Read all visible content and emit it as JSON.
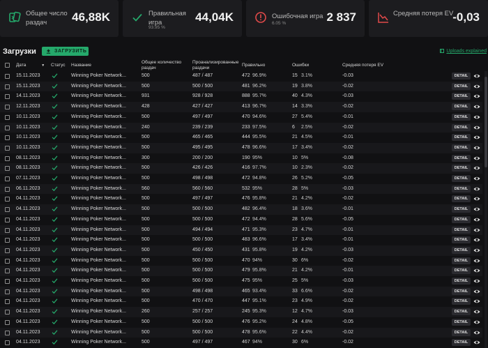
{
  "stats": {
    "hands": {
      "label": "Общее число раздач",
      "value": "46,88K",
      "icon": "cards-icon"
    },
    "correct": {
      "label": "Правильная игра",
      "sub": "93.95 %",
      "value": "44,04K",
      "icon": "check-icon"
    },
    "errors": {
      "label": "Ошибочная игра",
      "sub": "6.05 %",
      "value": "2 837",
      "icon": "alert-icon"
    },
    "ev": {
      "label": "Средняя потеря EV",
      "value": "-0,03",
      "icon": "chart-down-icon"
    }
  },
  "toolbar": {
    "title": "Загрузки",
    "upload_label": "ЗАГРУЗИТЬ",
    "help_link": "Uploads explained"
  },
  "table": {
    "headers": {
      "date": "Дата",
      "status": "Статус",
      "name": "Название",
      "total": "Общее количество раздач",
      "analyzed": "Проанализированные раздачи",
      "correct": "Правильно",
      "errors": "Ошибки",
      "ev": "Средняя потеря EV"
    },
    "detail_label": "DETAIL",
    "rows": [
      {
        "date": "15.11.2023",
        "name": "Winning Poker Network...",
        "total": "500",
        "analyzed": "487 / 487",
        "correct": "472",
        "correct_pct": "96.9%",
        "errors": "15",
        "errors_pct": "3.1%",
        "ev": "-0.03"
      },
      {
        "date": "15.11.2023",
        "name": "Winning Poker Network...",
        "total": "500",
        "analyzed": "500 / 500",
        "correct": "481",
        "correct_pct": "96.2%",
        "errors": "19",
        "errors_pct": "3.8%",
        "ev": "-0.02"
      },
      {
        "date": "14.11.2023",
        "name": "Winning Poker Network...",
        "total": "931",
        "analyzed": "928 / 928",
        "correct": "888",
        "correct_pct": "95.7%",
        "errors": "40",
        "errors_pct": "4.3%",
        "ev": "-0.03"
      },
      {
        "date": "12.11.2023",
        "name": "Winning Poker Network...",
        "total": "428",
        "analyzed": "427 / 427",
        "correct": "413",
        "correct_pct": "96.7%",
        "errors": "14",
        "errors_pct": "3.3%",
        "ev": "-0.02"
      },
      {
        "date": "10.11.2023",
        "name": "Winning Poker Network...",
        "total": "500",
        "analyzed": "497 / 497",
        "correct": "470",
        "correct_pct": "94.6%",
        "errors": "27",
        "errors_pct": "5.4%",
        "ev": "-0.01"
      },
      {
        "date": "10.11.2023",
        "name": "Winning Poker Network...",
        "total": "240",
        "analyzed": "239 / 239",
        "correct": "233",
        "correct_pct": "97.5%",
        "errors": "6",
        "errors_pct": "2.5%",
        "ev": "-0.02"
      },
      {
        "date": "10.11.2023",
        "name": "Winning Poker Network...",
        "total": "500",
        "analyzed": "465 / 465",
        "correct": "444",
        "correct_pct": "95.5%",
        "errors": "21",
        "errors_pct": "4.5%",
        "ev": "-0.01"
      },
      {
        "date": "10.11.2023",
        "name": "Winning Poker Network...",
        "total": "500",
        "analyzed": "495 / 495",
        "correct": "478",
        "correct_pct": "96.6%",
        "errors": "17",
        "errors_pct": "3.4%",
        "ev": "-0.02"
      },
      {
        "date": "08.11.2023",
        "name": "Winning Poker Network...",
        "total": "300",
        "analyzed": "200 / 200",
        "correct": "190",
        "correct_pct": "95%",
        "errors": "10",
        "errors_pct": "5%",
        "ev": "-0.08"
      },
      {
        "date": "08.11.2023",
        "name": "Winning Poker Network...",
        "total": "500",
        "analyzed": "426 / 426",
        "correct": "416",
        "correct_pct": "97.7%",
        "errors": "10",
        "errors_pct": "2.3%",
        "ev": "-0.02"
      },
      {
        "date": "07.11.2023",
        "name": "Winning Poker Network...",
        "total": "500",
        "analyzed": "498 / 498",
        "correct": "472",
        "correct_pct": "94.8%",
        "errors": "26",
        "errors_pct": "5.2%",
        "ev": "-0.05"
      },
      {
        "date": "06.11.2023",
        "name": "Winning Poker Network...",
        "total": "560",
        "analyzed": "560 / 560",
        "correct": "532",
        "correct_pct": "95%",
        "errors": "28",
        "errors_pct": "5%",
        "ev": "-0.03"
      },
      {
        "date": "04.11.2023",
        "name": "Winning Poker Network...",
        "total": "500",
        "analyzed": "497 / 497",
        "correct": "476",
        "correct_pct": "95.8%",
        "errors": "21",
        "errors_pct": "4.2%",
        "ev": "-0.02"
      },
      {
        "date": "04.11.2023",
        "name": "Winning Poker Network...",
        "total": "500",
        "analyzed": "500 / 500",
        "correct": "482",
        "correct_pct": "96.4%",
        "errors": "18",
        "errors_pct": "3.6%",
        "ev": "-0.01"
      },
      {
        "date": "04.11.2023",
        "name": "Winning Poker Network...",
        "total": "500",
        "analyzed": "500 / 500",
        "correct": "472",
        "correct_pct": "94.4%",
        "errors": "28",
        "errors_pct": "5.6%",
        "ev": "-0.05"
      },
      {
        "date": "04.11.2023",
        "name": "Winning Poker Network...",
        "total": "500",
        "analyzed": "494 / 494",
        "correct": "471",
        "correct_pct": "95.3%",
        "errors": "23",
        "errors_pct": "4.7%",
        "ev": "-0.01"
      },
      {
        "date": "04.11.2023",
        "name": "Winning Poker Network...",
        "total": "500",
        "analyzed": "500 / 500",
        "correct": "483",
        "correct_pct": "96.6%",
        "errors": "17",
        "errors_pct": "3.4%",
        "ev": "-0.01"
      },
      {
        "date": "04.11.2023",
        "name": "Winning Poker Network...",
        "total": "500",
        "analyzed": "450 / 450",
        "correct": "431",
        "correct_pct": "95.8%",
        "errors": "19",
        "errors_pct": "4.2%",
        "ev": "-0.03"
      },
      {
        "date": "04.11.2023",
        "name": "Winning Poker Network...",
        "total": "500",
        "analyzed": "500 / 500",
        "correct": "470",
        "correct_pct": "94%",
        "errors": "30",
        "errors_pct": "6%",
        "ev": "-0.02"
      },
      {
        "date": "04.11.2023",
        "name": "Winning Poker Network...",
        "total": "500",
        "analyzed": "500 / 500",
        "correct": "479",
        "correct_pct": "95.8%",
        "errors": "21",
        "errors_pct": "4.2%",
        "ev": "-0.01"
      },
      {
        "date": "04.11.2023",
        "name": "Winning Poker Network...",
        "total": "500",
        "analyzed": "500 / 500",
        "correct": "475",
        "correct_pct": "95%",
        "errors": "25",
        "errors_pct": "5%",
        "ev": "-0.03"
      },
      {
        "date": "04.11.2023",
        "name": "Winning Poker Network...",
        "total": "500",
        "analyzed": "498 / 498",
        "correct": "465",
        "correct_pct": "93.4%",
        "errors": "33",
        "errors_pct": "6.6%",
        "ev": "-0.02"
      },
      {
        "date": "04.11.2023",
        "name": "Winning Poker Network...",
        "total": "500",
        "analyzed": "470 / 470",
        "correct": "447",
        "correct_pct": "95.1%",
        "errors": "23",
        "errors_pct": "4.9%",
        "ev": "-0.02"
      },
      {
        "date": "04.11.2023",
        "name": "Winning Poker Network...",
        "total": "260",
        "analyzed": "257 / 257",
        "correct": "245",
        "correct_pct": "95.3%",
        "errors": "12",
        "errors_pct": "4.7%",
        "ev": "-0.03"
      },
      {
        "date": "04.11.2023",
        "name": "Winning Poker Network...",
        "total": "500",
        "analyzed": "500 / 500",
        "correct": "476",
        "correct_pct": "95.2%",
        "errors": "24",
        "errors_pct": "4.8%",
        "ev": "-0.05"
      },
      {
        "date": "04.11.2023",
        "name": "Winning Poker Network...",
        "total": "500",
        "analyzed": "500 / 500",
        "correct": "478",
        "correct_pct": "95.6%",
        "errors": "22",
        "errors_pct": "4.4%",
        "ev": "-0.02"
      },
      {
        "date": "04.11.2023",
        "name": "Winning Poker Network...",
        "total": "500",
        "analyzed": "497 / 497",
        "correct": "467",
        "correct_pct": "94%",
        "errors": "30",
        "errors_pct": "6%",
        "ev": "-0.02"
      }
    ]
  },
  "colors": {
    "accent": "#25a96b",
    "error": "#e24a4a",
    "background": "#111113",
    "card": "#1c1c1f"
  }
}
